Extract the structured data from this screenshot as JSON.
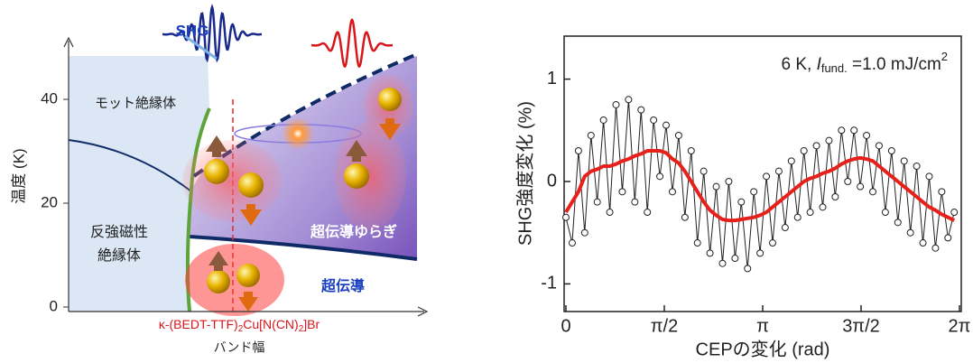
{
  "chart_data": [
    {
      "type": "phase-diagram",
      "ylim": [
        0,
        50
      ],
      "yticks": [
        0,
        20,
        40
      ],
      "ylabel": "温度 (K)",
      "xlabel": "バンド幅",
      "compound": [
        "κ-(BEDT-TTF)",
        "2",
        "Cu[N(CN)",
        "2",
        "]Br"
      ],
      "probe": "SHG",
      "regions": [
        "モット絶縁体",
        "反強磁性",
        "絶縁体",
        "超伝導ゆらぎ",
        "超伝導"
      ]
    },
    {
      "type": "line",
      "annotation": [
        "6 K, ",
        "I",
        "fund.",
        " =1.0 mJ/cm",
        "2"
      ],
      "xlabel": "CEPの変化 (rad)",
      "ylabel": "SHG強度変化 (%)",
      "xlim": [
        0,
        6.2832
      ],
      "xticks": [
        0,
        {
          "value": 1.5708,
          "label": "π/2"
        },
        {
          "value": 3.1416,
          "label": "π"
        },
        {
          "value": 4.7124,
          "label": "3π/2"
        },
        {
          "value": 6.2832,
          "label": "2π"
        }
      ],
      "ylim": [
        -1.27,
        1.42
      ],
      "yticks": [
        -1,
        0,
        1
      ],
      "x": [
        0,
        0.1,
        0.2,
        0.3,
        0.4,
        0.5,
        0.6,
        0.7,
        0.8,
        0.9,
        1.0,
        1.1,
        1.2,
        1.3,
        1.4,
        1.5,
        1.6,
        1.7,
        1.8,
        1.9,
        2.0,
        2.1,
        2.2,
        2.3,
        2.4,
        2.5,
        2.6,
        2.7,
        2.8,
        2.9,
        3.0,
        3.1,
        3.2,
        3.3,
        3.4,
        3.5,
        3.6,
        3.7,
        3.8,
        3.9,
        4.0,
        4.1,
        4.2,
        4.3,
        4.4,
        4.5,
        4.6,
        4.7,
        4.8,
        4.9,
        5.0,
        5.1,
        5.2,
        5.3,
        5.4,
        5.5,
        5.6,
        5.7,
        5.8,
        5.9,
        6.0,
        6.1,
        6.2
      ],
      "series": [
        {
          "color": "#222222",
          "marker": "circle",
          "values": [
            -0.35,
            -0.6,
            0.3,
            -0.5,
            0.45,
            -0.2,
            0.6,
            -0.3,
            0.75,
            -0.1,
            0.8,
            -0.2,
            0.7,
            -0.3,
            0.6,
            0.05,
            0.55,
            -0.1,
            0.45,
            -0.35,
            0.3,
            -0.6,
            0.1,
            -0.7,
            -0.05,
            -0.8,
            0.0,
            -0.75,
            -0.2,
            -0.85,
            -0.1,
            -0.7,
            0.05,
            -0.6,
            0.1,
            -0.45,
            0.2,
            -0.35,
            0.3,
            -0.3,
            0.35,
            -0.25,
            0.4,
            -0.15,
            0.5,
            0.0,
            0.5,
            -0.05,
            0.45,
            -0.1,
            0.35,
            -0.3,
            0.3,
            -0.4,
            0.2,
            -0.5,
            0.15,
            -0.6,
            0.05,
            -0.65,
            -0.1,
            -0.55,
            -0.3
          ]
        },
        {
          "color": "#e8201c",
          "values": [
            -0.3,
            -0.2,
            -0.1,
            0.05,
            0.1,
            0.12,
            0.15,
            0.15,
            0.17,
            0.2,
            0.22,
            0.25,
            0.27,
            0.3,
            0.3,
            0.3,
            0.28,
            0.22,
            0.18,
            0.1,
            0.0,
            -0.1,
            -0.2,
            -0.28,
            -0.33,
            -0.37,
            -0.38,
            -0.38,
            -0.37,
            -0.36,
            -0.35,
            -0.33,
            -0.3,
            -0.25,
            -0.2,
            -0.15,
            -0.1,
            -0.05,
            0.0,
            0.03,
            0.05,
            0.08,
            0.1,
            0.13,
            0.17,
            0.2,
            0.22,
            0.23,
            0.22,
            0.2,
            0.15,
            0.1,
            0.05,
            0.0,
            -0.05,
            -0.1,
            -0.15,
            -0.2,
            -0.25,
            -0.28,
            -0.32,
            -0.35,
            -0.38
          ]
        }
      ]
    }
  ]
}
